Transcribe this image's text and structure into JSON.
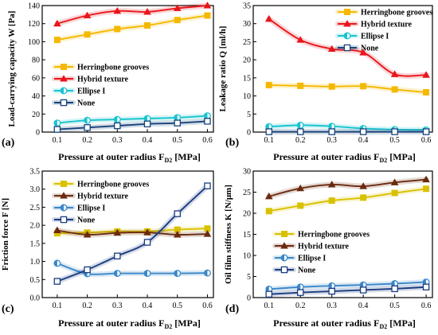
{
  "chart_data": [
    {
      "type": "line",
      "panel_label": "(a)",
      "xlabel": "Pressure at outer radius F",
      "xlabel_sub": "D2",
      "xlabel_unit": " [MPa]",
      "ylabel": "Load-carrying capacity W [Pa]",
      "xlim": [
        0.05,
        0.62
      ],
      "ylim": [
        0,
        140
      ],
      "xticks": [
        0.1,
        0.2,
        0.3,
        0.4,
        0.5,
        0.6
      ],
      "xtick_labels": [
        "0.1",
        "0.2",
        "0.3",
        "0.4",
        "0.5",
        "0.6"
      ],
      "yticks": [
        0,
        20,
        40,
        60,
        80,
        100,
        120,
        140
      ],
      "ytick_labels": [
        "0",
        "20",
        "40",
        "60",
        "80",
        "100",
        "120",
        "140"
      ],
      "x": [
        0.1,
        0.2,
        0.3,
        0.4,
        0.5,
        0.6
      ],
      "legend_position": "center-left",
      "series": [
        {
          "name": "Herringbone grooves",
          "color": "#f5b800",
          "marker": "square",
          "values": [
            102,
            108,
            114,
            118,
            124,
            129
          ]
        },
        {
          "name": "Hybrid texture",
          "color": "#e8161b",
          "marker": "triangle",
          "values": [
            120,
            129,
            134,
            133,
            137,
            140
          ]
        },
        {
          "name": "Ellipse I",
          "color": "#19c3cf",
          "marker": "circle-half",
          "values": [
            10,
            13,
            14,
            15,
            16,
            18
          ]
        },
        {
          "name": "None",
          "color": "#16437a",
          "marker": "square-open",
          "values": [
            3,
            5,
            7,
            9,
            10,
            12
          ]
        }
      ]
    },
    {
      "type": "line",
      "panel_label": "(b)",
      "xlabel": "Pressure at outer radius F",
      "xlabel_sub": "D2",
      "xlabel_unit": " [MPa]",
      "ylabel": "Leakage ratio Q [ml/h]",
      "xlim": [
        0.05,
        0.62
      ],
      "ylim": [
        0,
        35
      ],
      "xticks": [
        0.1,
        0.2,
        0.3,
        0.4,
        0.5,
        0.6
      ],
      "xtick_labels": [
        "0.1",
        "0.2",
        "0.3",
        "0.4",
        "0.5",
        "0.6"
      ],
      "yticks": [
        0,
        5,
        10,
        15,
        20,
        25,
        30,
        35
      ],
      "ytick_labels": [
        "0",
        "5",
        "10",
        "15",
        "20",
        "25",
        "30",
        "35"
      ],
      "x": [
        0.1,
        0.2,
        0.3,
        0.4,
        0.5,
        0.6
      ],
      "legend_position": "top-right",
      "series": [
        {
          "name": "Herringbone grooves",
          "color": "#f5b800",
          "marker": "square",
          "values": [
            13.0,
            12.8,
            12.6,
            12.7,
            11.8,
            11.0
          ]
        },
        {
          "name": "Hybrid texture",
          "color": "#e8161b",
          "marker": "triangle",
          "values": [
            31.3,
            25.5,
            23.0,
            22.0,
            16.0,
            15.8
          ]
        },
        {
          "name": "Ellipse I",
          "color": "#19c3cf",
          "marker": "circle-half",
          "values": [
            1.5,
            1.9,
            1.6,
            1.0,
            0.7,
            0.6
          ]
        },
        {
          "name": "None",
          "color": "#16437a",
          "marker": "square-open",
          "values": [
            0.1,
            0.1,
            0.1,
            0.1,
            0.1,
            0.1
          ]
        }
      ]
    },
    {
      "type": "line",
      "panel_label": "(c)",
      "xlabel": "Pressure at outer radius F",
      "xlabel_sub": "D2",
      "xlabel_unit": " [MPa]",
      "ylabel": "Friction force F [N]",
      "xlim": [
        0.05,
        0.62
      ],
      "ylim": [
        0,
        3.5
      ],
      "xticks": [
        0.1,
        0.2,
        0.3,
        0.4,
        0.5,
        0.6
      ],
      "xtick_labels": [
        "0.1",
        "0.2",
        "0.3",
        "0.4",
        "0.5",
        "0.6"
      ],
      "yticks": [
        0,
        0.5,
        1.0,
        1.5,
        2.0,
        2.5,
        3.0,
        3.5
      ],
      "ytick_labels": [
        "0.0",
        "0.5",
        "1.0",
        "1.5",
        "2.0",
        "2.5",
        "3.0",
        "3.5"
      ],
      "x": [
        0.1,
        0.2,
        0.3,
        0.4,
        0.5,
        0.6
      ],
      "legend_position": "top-left",
      "series": [
        {
          "name": "Herringbone grooves",
          "color": "#d9c100",
          "marker": "square",
          "values": [
            1.78,
            1.8,
            1.83,
            1.83,
            1.88,
            1.91
          ]
        },
        {
          "name": "Hybrid texture",
          "color": "#6b2a0e",
          "marker": "triangle",
          "values": [
            1.86,
            1.74,
            1.79,
            1.8,
            1.74,
            1.76
          ]
        },
        {
          "name": "Ellipse I",
          "color": "#3a87c8",
          "marker": "circle-half",
          "values": [
            0.95,
            0.66,
            0.67,
            0.67,
            0.67,
            0.68
          ]
        },
        {
          "name": "None",
          "color": "#1a3c80",
          "marker": "square-open",
          "values": [
            0.45,
            0.77,
            1.15,
            1.53,
            2.32,
            3.09
          ]
        }
      ]
    },
    {
      "type": "line",
      "panel_label": "(d)",
      "xlabel": "Pressure at outer radius F",
      "xlabel_sub": "D2",
      "xlabel_unit": " [MPa]",
      "ylabel": "Oil film stiffness K [N/μm]",
      "xlim": [
        0.05,
        0.62
      ],
      "ylim": [
        0,
        30
      ],
      "xticks": [
        0.1,
        0.2,
        0.3,
        0.4,
        0.5,
        0.6
      ],
      "xtick_labels": [
        "0.1",
        "0.2",
        "0.3",
        "0.4",
        "0.5",
        "0.6"
      ],
      "yticks": [
        0,
        5,
        10,
        15,
        20,
        25,
        30
      ],
      "ytick_labels": [
        "0",
        "5",
        "10",
        "15",
        "20",
        "25",
        "30"
      ],
      "x": [
        0.1,
        0.2,
        0.3,
        0.4,
        0.5,
        0.6
      ],
      "legend_position": "center",
      "series": [
        {
          "name": "Herringbone grooves",
          "color": "#d9c100",
          "marker": "square",
          "values": [
            20.5,
            21.8,
            23.0,
            23.7,
            24.8,
            25.8
          ]
        },
        {
          "name": "Hybrid texture",
          "color": "#6b2a0e",
          "marker": "triangle",
          "values": [
            24.0,
            25.9,
            26.8,
            26.4,
            27.3,
            28.0
          ]
        },
        {
          "name": "Ellipse I",
          "color": "#3a87c8",
          "marker": "circle-half",
          "values": [
            2.0,
            2.5,
            2.8,
            3.0,
            3.3,
            3.7
          ]
        },
        {
          "name": "None",
          "color": "#1a3c80",
          "marker": "square-open",
          "values": [
            0.8,
            1.2,
            1.5,
            1.8,
            2.1,
            2.5
          ]
        }
      ]
    }
  ]
}
